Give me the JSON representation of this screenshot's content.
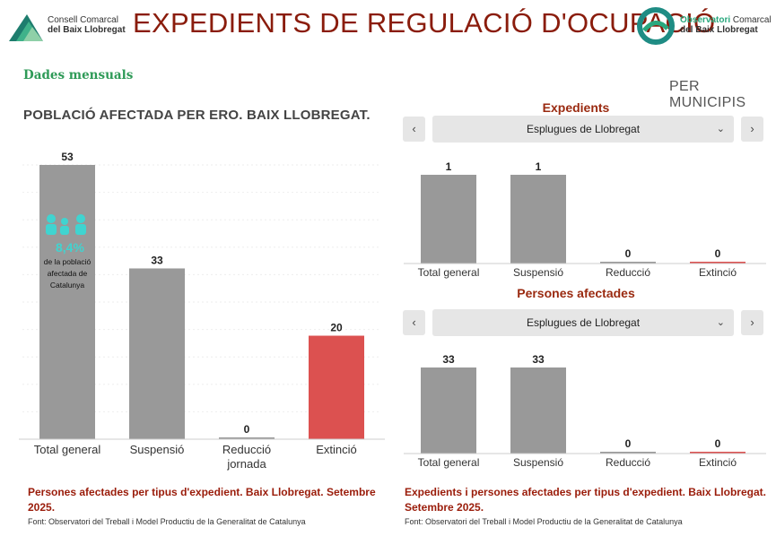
{
  "header": {
    "title": "EXPEDIENTS DE REGULACIÓ D'OCUPACIÓ",
    "logo_left_line1": "Consell Comarcal",
    "logo_left_line2": "del Baix Llobregat",
    "logo_right_line1a": "Observatori",
    "logo_right_line1b": "Comarcal",
    "logo_right_line2": "del Baix Llobregat"
  },
  "subheader": {
    "monthly": "Dades mensuals",
    "per_municipi": "PER MUNICIPIS"
  },
  "left_chart": {
    "title": "POBLACIÓ AFECTADA PER ERO. BAIX LLOBREGAT.",
    "stat_pct": "8,4%",
    "stat_text_1": "de la població",
    "stat_text_2": "afectada de",
    "stat_text_3": "Catalunya",
    "caption": "Persones afectades per tipus d'expedient. Baix Llobregat. Setembre 2025.",
    "source": "Font: Observatori del Treball i Model Productiu de la Generalitat de Catalunya"
  },
  "right_panels": {
    "expedients_title": "Expedients",
    "persones_title": "Persones afectades",
    "selected_municipi": "Esplugues de Llobregat",
    "prev_label": "‹",
    "next_label": "›",
    "dropdown_chevron": "⌄",
    "caption_line1": "Expedients i persones afectades per tipus d'expedient. Baix Llobregat.",
    "caption_line2": "Setembre 2025.",
    "source": "Font: Observatori del Treball i Model Productiu de la Generalitat de Catalunya"
  },
  "colors": {
    "bar_gray": "#999999",
    "bar_red": "#dc5150",
    "title_red": "#8a1c0c",
    "accent_green": "#2e9a57",
    "accent_teal": "#40d4d0"
  },
  "chart_data": [
    {
      "type": "bar",
      "title": "",
      "categories": [
        "Total general",
        "Suspensió",
        "Reducció jornada",
        "Extinció"
      ],
      "category_lines": [
        [
          "Total general"
        ],
        [
          "Suspensió"
        ],
        [
          "Reducció",
          "jornada"
        ],
        [
          "Extinció"
        ]
      ],
      "values": [
        53,
        33,
        0,
        20
      ],
      "colors": [
        "#999999",
        "#999999",
        "#999999",
        "#dc5150"
      ],
      "ylim": [
        0,
        53
      ],
      "grid": true
    },
    {
      "type": "bar",
      "title": "Expedients",
      "categories": [
        "Total general",
        "Suspensió",
        "Reducció",
        "Extinció"
      ],
      "values": [
        1,
        1,
        0,
        0
      ],
      "colors": [
        "#999999",
        "#999999",
        "#999999",
        "#dc5150"
      ],
      "ylim": [
        0,
        1
      ]
    },
    {
      "type": "bar",
      "title": "Persones afectades",
      "categories": [
        "Total general",
        "Suspensió",
        "Reducció",
        "Extinció"
      ],
      "values": [
        33,
        33,
        0,
        0
      ],
      "colors": [
        "#999999",
        "#999999",
        "#999999",
        "#dc5150"
      ],
      "ylim": [
        0,
        33
      ]
    }
  ]
}
